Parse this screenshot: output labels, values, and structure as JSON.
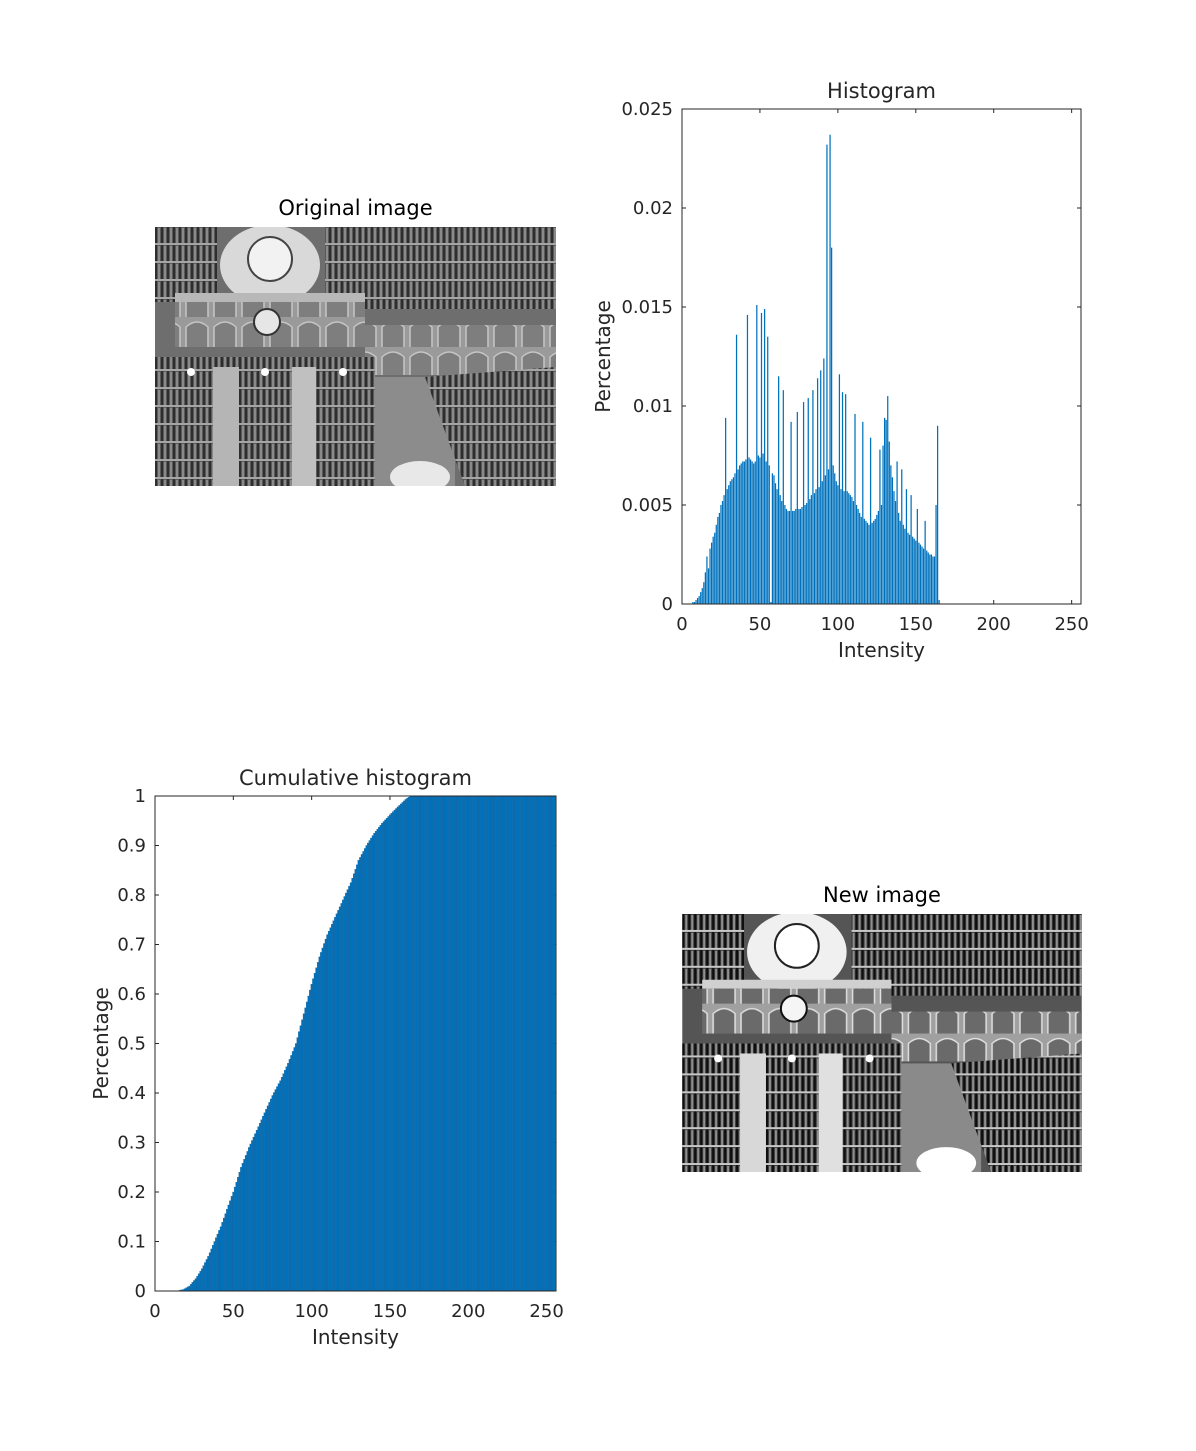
{
  "panels": {
    "original_title": "Original image",
    "new_title": "New image"
  },
  "colors": {
    "bar": "#0072BD",
    "axis": "#262626",
    "background": "#ffffff"
  },
  "chart_data": [
    {
      "type": "bar",
      "title": "Histogram",
      "xlabel": "Intensity",
      "ylabel": "Percentage",
      "xlim": [
        0,
        256
      ],
      "ylim": [
        0,
        0.025
      ],
      "xticks": [
        0,
        50,
        100,
        150,
        200,
        250
      ],
      "yticks": [
        0,
        0.005,
        0.01,
        0.015,
        0.02,
        0.025
      ],
      "grid": false,
      "x_start": 0,
      "values": [
        0,
        0,
        0,
        0,
        0,
        0,
        0,
        0.0001,
        0.0001,
        0.0002,
        0.0003,
        0.0004,
        0.0006,
        0.0008,
        0.0011,
        0.0016,
        0.0024,
        0.0018,
        0.0028,
        0.0031,
        0.0034,
        0.0036,
        0.004,
        0.0044,
        0.0046,
        0.005,
        0.0052,
        0.0055,
        0.0094,
        0.0058,
        0.006,
        0.0062,
        0.0063,
        0.0064,
        0.0066,
        0.0136,
        0.0068,
        0.007,
        0.0071,
        0.0072,
        0.0072,
        0.0073,
        0.0146,
        0.0074,
        0.0073,
        0.0072,
        0.0071,
        0.0072,
        0.0151,
        0.0075,
        0.0074,
        0.0147,
        0.0076,
        0.0149,
        0.0072,
        0.0135,
        0.007,
        0.0001,
        0.0066,
        0.0065,
        0.0061,
        0.0058,
        0.0115,
        0.0055,
        0.0052,
        0.0108,
        0.005,
        0.0048,
        0.0047,
        0.0047,
        0.0092,
        0.0047,
        0.0047,
        0.0048,
        0.0097,
        0.0048,
        0.0048,
        0.0049,
        0.0102,
        0.005,
        0.0051,
        0.0104,
        0.0053,
        0.0055,
        0.0108,
        0.0056,
        0.0058,
        0.0114,
        0.0059,
        0.0118,
        0.0062,
        0.0124,
        0.0065,
        0.0232,
        0.0068,
        0.0237,
        0.018,
        0.007,
        0.0066,
        0.0062,
        0.006,
        0.0116,
        0.0058,
        0.0107,
        0.0057,
        0.0106,
        0.0057,
        0.0056,
        0.0055,
        0.0054,
        0.0052,
        0.0096,
        0.005,
        0.0048,
        0.0046,
        0.0044,
        0.0092,
        0.0043,
        0.0042,
        0.0041,
        0.004,
        0.0084,
        0.0041,
        0.0042,
        0.0043,
        0.0045,
        0.0047,
        0.0078,
        0.005,
        0.008,
        0.0094,
        0.0093,
        0.0105,
        0.0082,
        0.007,
        0.0064,
        0.0057,
        0.0052,
        0.0072,
        0.0046,
        0.0042,
        0.0068,
        0.004,
        0.0038,
        0.0058,
        0.0036,
        0.0035,
        0.0055,
        0.0034,
        0.0033,
        0.0032,
        0.0048,
        0.0031,
        0.003,
        0.0029,
        0.0028,
        0.0042,
        0.0027,
        0.0026,
        0.0025,
        0.0025,
        0.0024,
        0.0024,
        0.005,
        0.009,
        0.0002
      ]
    },
    {
      "type": "bar",
      "title": "Cumulative histogram",
      "xlabel": "Intensity",
      "ylabel": "Percentage",
      "xlim": [
        0,
        256
      ],
      "ylim": [
        0,
        1
      ],
      "xticks": [
        0,
        50,
        100,
        150,
        200,
        250
      ],
      "yticks": [
        0,
        0.1,
        0.2,
        0.3,
        0.4,
        0.5,
        0.6,
        0.7,
        0.8,
        0.9,
        1
      ],
      "grid": false,
      "x_start": 0,
      "values_note_free": true,
      "points": [
        [
          0,
          0
        ],
        [
          14,
          0
        ],
        [
          18,
          0.003
        ],
        [
          22,
          0.01
        ],
        [
          26,
          0.025
        ],
        [
          30,
          0.045
        ],
        [
          34,
          0.07
        ],
        [
          38,
          0.1
        ],
        [
          42,
          0.13
        ],
        [
          46,
          0.165
        ],
        [
          50,
          0.2
        ],
        [
          55,
          0.25
        ],
        [
          60,
          0.29
        ],
        [
          65,
          0.325
        ],
        [
          70,
          0.36
        ],
        [
          75,
          0.395
        ],
        [
          80,
          0.425
        ],
        [
          85,
          0.46
        ],
        [
          90,
          0.5
        ],
        [
          95,
          0.56
        ],
        [
          100,
          0.62
        ],
        [
          105,
          0.675
        ],
        [
          110,
          0.72
        ],
        [
          115,
          0.755
        ],
        [
          120,
          0.79
        ],
        [
          125,
          0.825
        ],
        [
          130,
          0.87
        ],
        [
          135,
          0.9
        ],
        [
          140,
          0.925
        ],
        [
          145,
          0.945
        ],
        [
          150,
          0.962
        ],
        [
          155,
          0.978
        ],
        [
          160,
          0.993
        ],
        [
          163,
          1
        ],
        [
          256,
          1
        ]
      ]
    }
  ]
}
